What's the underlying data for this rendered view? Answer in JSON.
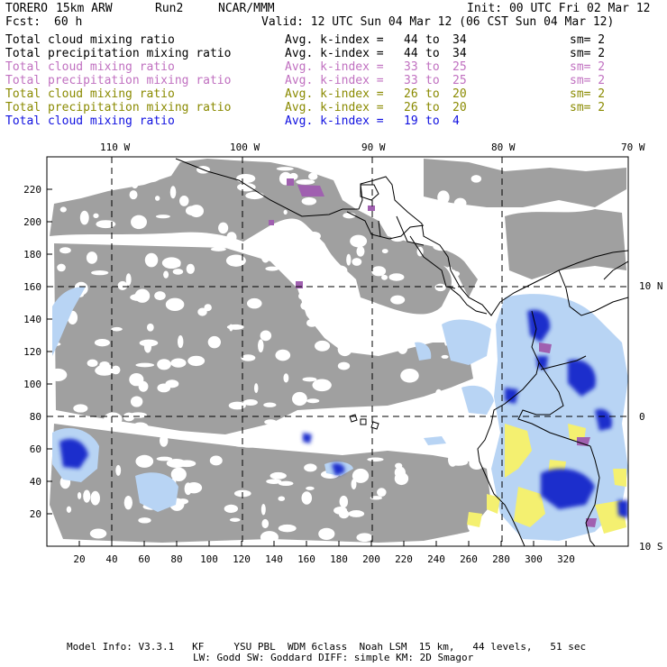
{
  "header": {
    "model": "TORERO",
    "resolution": "15km ARW",
    "run": "Run2",
    "org": "NCAR/MMM",
    "init": "Init: 00 UTC Fri 02 Mar 12",
    "fcst_label": "Fcst:",
    "fcst_value": "60 h",
    "valid": "Valid: 12 UTC Sun 04 Mar 12 (06 CST Sun 04 Mar 12)"
  },
  "legend": [
    {
      "field": "Total cloud mixing ratio",
      "index_label": "Avg. k-index =",
      "k_from": "44",
      "to": "to",
      "k_to": "34",
      "sm": "sm= 2",
      "color": "#000000"
    },
    {
      "field": "Total precipitation mixing ratio",
      "index_label": "Avg. k-index =",
      "k_from": "44",
      "to": "to",
      "k_to": "34",
      "sm": "sm= 2",
      "color": "#000000"
    },
    {
      "field": "Total cloud mixing ratio",
      "index_label": "Avg. k-index =",
      "k_from": "33",
      "to": "to",
      "k_to": "25",
      "sm": "sm= 2",
      "color": "#c070c0"
    },
    {
      "field": "Total precipitation mixing ratio",
      "index_label": "Avg. k-index =",
      "k_from": "33",
      "to": "to",
      "k_to": "25",
      "sm": "sm= 2",
      "color": "#c070c0"
    },
    {
      "field": "Total cloud mixing ratio",
      "index_label": "Avg. k-index =",
      "k_from": "26",
      "to": "to",
      "k_to": "20",
      "sm": "sm= 2",
      "color": "#8a8a00"
    },
    {
      "field": "Total precipitation mixing ratio",
      "index_label": "Avg. k-index =",
      "k_from": "26",
      "to": "to",
      "k_to": "20",
      "sm": "sm= 2",
      "color": "#8a8a00"
    },
    {
      "field": "Total cloud mixing ratio",
      "index_label": "Avg. k-index =",
      "k_from": "19",
      "to": "to",
      "k_to": "4",
      "sm": "",
      "color": "#1010e0"
    }
  ],
  "map": {
    "lon_labels": [
      "110 W",
      "100 W",
      "90 W",
      "80 W",
      "70 W"
    ],
    "lat_labels": [
      "10 N",
      "0",
      "10 S"
    ],
    "x_ticks": [
      "20",
      "40",
      "60",
      "80",
      "100",
      "120",
      "140",
      "160",
      "180",
      "200",
      "220",
      "240",
      "260",
      "280",
      "300",
      "320"
    ],
    "y_ticks": [
      "220",
      "200",
      "180",
      "160",
      "140",
      "120",
      "100",
      "80",
      "60",
      "40",
      "20"
    ]
  },
  "footer": {
    "line1": "Model Info: V3.3.1   KF     YSU PBL  WDM 6class  Noah LSM  15 km,   44 levels,   51 sec",
    "line2": "LW: Godd SW: Goddard DIFF: simple KM: 2D Smagor"
  }
}
